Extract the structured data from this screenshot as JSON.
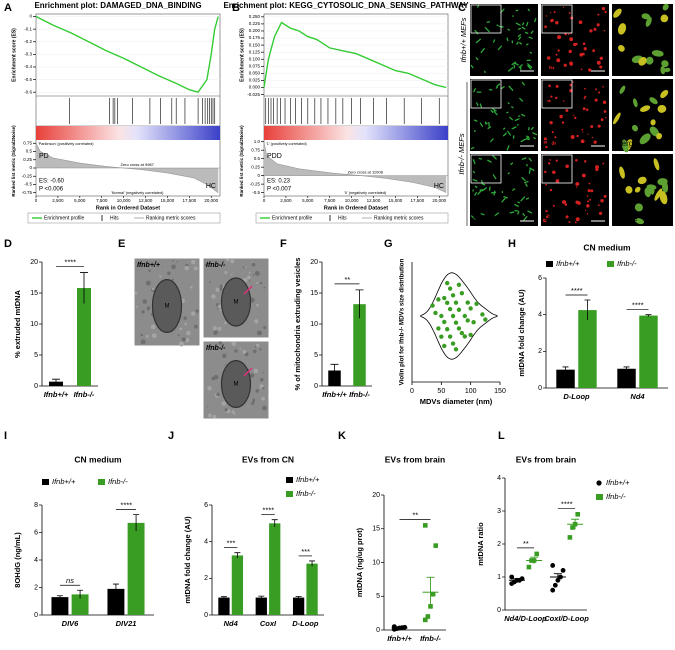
{
  "chart_data": [
    {
      "type": "gsea",
      "panel": "A",
      "title": "Enrichment plot: DAMAGED_DNA_BINDING",
      "ylabel": "Enrichment score (ES)",
      "x": [
        0,
        2000,
        4000,
        6000,
        8000,
        10000,
        12000,
        14000,
        16000,
        17500,
        18500,
        19000,
        19500,
        20000,
        20400,
        20800
      ],
      "values": [
        0,
        -0.07,
        -0.13,
        -0.2,
        -0.27,
        -0.33,
        -0.4,
        -0.47,
        -0.53,
        -0.58,
        -0.6,
        -0.55,
        -0.5,
        -0.3,
        -0.1,
        0
      ],
      "ylim": [
        -0.63,
        0.02
      ],
      "yticks": [
        0,
        -0.1,
        -0.2,
        -0.3,
        -0.4,
        -0.5,
        -0.6
      ],
      "hits": [
        3800,
        8400,
        8800,
        9000,
        9300,
        11000,
        13000,
        14200,
        15500,
        16000,
        17000,
        18500,
        19000,
        19300,
        19600,
        19800,
        20000,
        20200,
        20400
      ],
      "metric_ylabel": "Ranked list metric (Signal2Noise)",
      "metric_x": [
        0,
        500,
        2000,
        5000,
        8000,
        9987,
        12000,
        15000,
        18000,
        19500,
        20800
      ],
      "metric_values": [
        0.75,
        0.5,
        0.3,
        0.15,
        0.05,
        0,
        -0.05,
        -0.15,
        -0.3,
        -0.5,
        -0.75
      ],
      "metric_ylim": [
        -0.85,
        0.85
      ],
      "metric_yticks": [
        -0.75,
        -0.5,
        -0.25,
        0,
        0.25,
        0.5,
        0.75
      ],
      "xlim": [
        0,
        21000
      ],
      "xticks": [
        0,
        {
          "value": 2500,
          "label": "2,500"
        },
        {
          "value": 5000,
          "label": "5,000"
        },
        {
          "value": 7500,
          "label": "7,500"
        },
        {
          "value": 10000,
          "label": "10,000"
        },
        {
          "value": 12500,
          "label": "12,500"
        },
        {
          "value": 15000,
          "label": "15,000"
        },
        {
          "value": 17500,
          "label": "17,500"
        },
        {
          "value": 20000,
          "label": "20,000"
        }
      ],
      "xlabel": "Rank in Ordered Dataset",
      "texts": {
        "left_label": "PD",
        "right_label": "HC",
        "es": "ES: -0.60",
        "p": "P <0.006",
        "zero_cross": "Zero cross at 9987",
        "pos_label": "'Parkinson' (positively correlated)",
        "neg_label": "'Normal' (negatively correlated)"
      },
      "legend": [
        "Enrichment profile",
        "Hits",
        "Ranking metric scores"
      ],
      "color": "#33cc33"
    },
    {
      "type": "gsea",
      "panel": "B",
      "title": "Enrichment plot: KEGG_CYTOSOLIC_DNA_SENSING_PATHWAY",
      "ylabel": "Enrichment score (ES)",
      "x": [
        0,
        500,
        1200,
        2000,
        3000,
        4000,
        5000,
        6000,
        7500,
        9000,
        10500,
        12000,
        13500,
        15000,
        16500,
        18000,
        19500,
        20800
      ],
      "values": [
        0,
        0.1,
        0.18,
        0.23,
        0.21,
        0.2,
        0.18,
        0.17,
        0.14,
        0.13,
        0.12,
        0.1,
        0.08,
        0.06,
        0.05,
        0.03,
        0.01,
        0
      ],
      "ylim": [
        -0.03,
        0.26
      ],
      "yticks": [
        {
          "value": 0.25,
          "label": "0.250"
        },
        {
          "value": 0.225,
          "label": "0.225"
        },
        {
          "value": 0.2,
          "label": "0.200"
        },
        {
          "value": 0.175,
          "label": "0.175"
        },
        {
          "value": 0.15,
          "label": "0.150"
        },
        {
          "value": 0.125,
          "label": "0.125"
        },
        {
          "value": 0.1,
          "label": "0.100"
        },
        {
          "value": 0.075,
          "label": "0.075"
        },
        {
          "value": 0.05,
          "label": "0.050"
        },
        {
          "value": 0.025,
          "label": "0.025"
        },
        {
          "value": 0,
          "label": "0.000"
        },
        -0.025
      ],
      "hits": [
        200,
        500,
        800,
        1100,
        1500,
        1900,
        2400,
        3000,
        3600,
        4300,
        5000,
        5800,
        6500,
        7300,
        8200,
        9000,
        10000,
        11000,
        12500,
        14000,
        16000,
        18000,
        20000
      ],
      "metric_ylabel": "Ranked list metric (Signal2Noise)",
      "metric_x": [
        0,
        300,
        1500,
        4000,
        8000,
        11008,
        14000,
        17000,
        19500,
        20800
      ],
      "metric_values": [
        1,
        0.6,
        0.35,
        0.2,
        0.07,
        0,
        -0.08,
        -0.2,
        -0.35,
        -0.5
      ],
      "metric_ylim": [
        -0.6,
        1.05
      ],
      "metric_yticks": [
        -0.5,
        -0.25,
        0,
        0.25,
        0.5,
        0.75,
        {
          "value": 1,
          "label": "1.0"
        }
      ],
      "xlim": [
        0,
        21000
      ],
      "xticks": [
        0,
        {
          "value": 2500,
          "label": "2,500"
        },
        {
          "value": 5000,
          "label": "5,000"
        },
        {
          "value": 7500,
          "label": "7,500"
        },
        {
          "value": 10000,
          "label": "10,000"
        },
        {
          "value": 12500,
          "label": "12,500"
        },
        {
          "value": 15000,
          "label": "15,000"
        },
        {
          "value": 17500,
          "label": "17,500"
        },
        {
          "value": 20000,
          "label": "20,000"
        }
      ],
      "xlabel": "Rank in Ordered Dataset",
      "texts": {
        "left_label": "PDD",
        "right_label": "HC",
        "es": "ES: 0.23",
        "p": "P <0.007",
        "zero_cross": "Zero cross at 11008",
        "pos_label": "'1' (positively correlated)",
        "neg_label": "'0' (negatively correlated)"
      },
      "legend": [
        "Enrichment profile",
        "Hits",
        "Ranking metric scores"
      ],
      "color": "#33cc33"
    },
    {
      "type": "bar",
      "panel": "D",
      "ylabel": "% extruded mtDNA",
      "categories": [
        "Ifnb+/+",
        "Ifnb-/-"
      ],
      "values": [
        0.7,
        15.8
      ],
      "errors": [
        0.4,
        2.5
      ],
      "colors": [
        "#000000",
        "#3a9d23"
      ],
      "ylim": [
        0,
        20
      ],
      "yticks": [
        0,
        5,
        10,
        15,
        20
      ],
      "significance": "****"
    },
    {
      "type": "bar",
      "panel": "F",
      "ylabel": "% of mitochondria extruding vesicles",
      "categories": [
        "Ifnb+/+",
        "Ifnb-/-"
      ],
      "values": [
        2.5,
        13.2
      ],
      "errors": [
        1,
        2.3
      ],
      "colors": [
        "#000000",
        "#3a9d23"
      ],
      "ylim": [
        0,
        20
      ],
      "yticks": [
        0,
        5,
        10,
        15,
        20
      ],
      "significance": "**"
    },
    {
      "type": "violin",
      "panel": "G",
      "ylabel": "Violin plot for Ifnb-/- MDVs size distribution",
      "xlabel": "MDVs diameter (nm)",
      "values": [
        35,
        40,
        45,
        45,
        50,
        50,
        55,
        55,
        55,
        60,
        60,
        60,
        65,
        65,
        65,
        70,
        70,
        70,
        75,
        75,
        75,
        80,
        80,
        80,
        85,
        85,
        90,
        90,
        95,
        95,
        100,
        100,
        105,
        110,
        120,
        125
      ],
      "xlim": [
        0,
        150
      ],
      "xticks": [
        0,
        50,
        100,
        150
      ],
      "color": "#3a9d23"
    },
    {
      "type": "bar",
      "panel": "H",
      "title": "CN medium",
      "ylabel": "mtDNA fold change (AU)",
      "categories": [
        "D-Loop",
        "Nd4"
      ],
      "series": [
        {
          "name": "Ifnb+/+",
          "color": "#000000",
          "values": [
            1,
            1.05
          ],
          "errors": [
            0.15,
            0.1
          ]
        },
        {
          "name": "Ifnb-/-",
          "color": "#3a9d23",
          "values": [
            4.25,
            3.95
          ],
          "errors": [
            0.55,
            0.05
          ]
        }
      ],
      "ylim": [
        0,
        6
      ],
      "yticks": [
        0,
        2,
        4,
        6
      ],
      "significance": [
        "****",
        "****"
      ],
      "legend": "top"
    },
    {
      "type": "bar",
      "panel": "I",
      "title": "CN medium",
      "ylabel": "8OHdG (ng/mL)",
      "categories": [
        "DIV6",
        "DIV21"
      ],
      "series": [
        {
          "name": "Ifnb+/+",
          "color": "#000000",
          "values": [
            1.3,
            1.9
          ],
          "errors": [
            0.1,
            0.35
          ]
        },
        {
          "name": "Ifnb-/-",
          "color": "#3a9d23",
          "values": [
            1.5,
            6.7
          ],
          "errors": [
            0.3,
            0.6
          ]
        }
      ],
      "ylim": [
        0,
        8
      ],
      "yticks": [
        0,
        2,
        4,
        6,
        8
      ],
      "significance": [
        "ns",
        "****"
      ],
      "legend": "top"
    },
    {
      "type": "bar",
      "panel": "J",
      "title": "EVs from CN",
      "ylabel": "mtDNA fold change (AU)",
      "categories": [
        "Nd4",
        "CoxI",
        "D-Loop"
      ],
      "series": [
        {
          "name": "Ifnb+/+",
          "color": "#000000",
          "values": [
            0.95,
            0.95,
            0.95
          ],
          "errors": [
            0.05,
            0.08,
            0.06
          ]
        },
        {
          "name": "Ifnb-/-",
          "color": "#3a9d23",
          "values": [
            3.25,
            5,
            2.8
          ],
          "errors": [
            0.15,
            0.2,
            0.15
          ]
        }
      ],
      "ylim": [
        0,
        6
      ],
      "yticks": [
        0,
        2,
        4,
        6
      ],
      "significance": [
        "***",
        "****",
        "***"
      ],
      "legend": "right"
    },
    {
      "type": "dot",
      "panel": "K",
      "title": "EVs from brain",
      "ylabel": "mtDNA (ng/ug prot)",
      "categories": [
        "Ifnb+/+",
        "Ifnb-/-"
      ],
      "values": [
        [
          0.1,
          0.2,
          0.3,
          0.35,
          0.4,
          0.5
        ],
        [
          1.5,
          2,
          3.5,
          5.3,
          12.5,
          15.5
        ]
      ],
      "means": [
        0.3,
        5.6
      ],
      "errors": [
        0.07,
        2.2
      ],
      "colors": [
        "#000000",
        "#3a9d23"
      ],
      "markers": [
        "circle",
        "square"
      ],
      "ylim": [
        0,
        20
      ],
      "yticks": [
        0,
        5,
        10,
        15,
        20
      ],
      "significance": "**"
    },
    {
      "type": "dot",
      "panel": "L",
      "title": "EVs from brain",
      "ylabel": "mtDNA ratio",
      "categories": [
        "Nd4/D-Loop",
        "CoxI/D-Loop"
      ],
      "series": [
        {
          "name": "Ifnb+/+",
          "color": "#000000",
          "marker": "circle",
          "values": [
            [
              0.8,
              0.85,
              0.9,
              0.9,
              0.95,
              1
            ],
            [
              0.6,
              0.75,
              0.9,
              1,
              1.2,
              1.35
            ]
          ],
          "means": [
            0.9,
            1
          ],
          "errors": [
            0.05,
            0.1
          ]
        },
        {
          "name": "Ifnb-/-",
          "color": "#3a9d23",
          "marker": "square",
          "values": [
            [
              1.3,
              1.5,
              1.5,
              1.7
            ],
            [
              2.2,
              2.5,
              2.6,
              2.9
            ]
          ],
          "means": [
            1.5,
            2.6
          ],
          "errors": [
            0.1,
            0.15
          ]
        }
      ],
      "ylim": [
        0,
        4
      ],
      "yticks": [
        0,
        1,
        2,
        3,
        4
      ],
      "significance": [
        "**",
        "****"
      ],
      "legend": "right"
    }
  ],
  "image_panels": [
    {
      "panel": "C",
      "group_labels": [
        "Ifnb+/+ MEFs",
        "Ifnb-/- MEFs"
      ],
      "rows": [
        [
          "Hsp60",
          "DNA",
          "merge"
        ],
        [
          "Hsp60",
          "DNA",
          "merge"
        ],
        [
          "Hsp60",
          "DNA",
          "merge"
        ]
      ]
    },
    {
      "panel": "E",
      "labels": [
        "Ifnb+/+",
        "Ifnb-/-",
        "Ifnb-/-"
      ],
      "marks": [
        "M",
        "M",
        "M"
      ]
    }
  ]
}
